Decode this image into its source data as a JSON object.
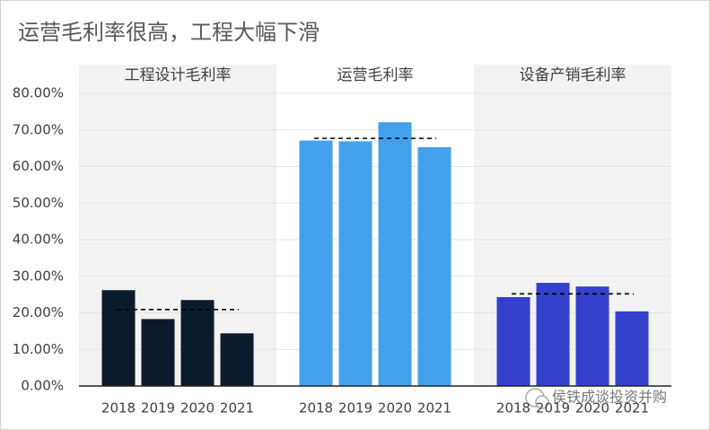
{
  "chart_data": {
    "type": "bar",
    "title": "运营毛利率很高，工程大幅下滑",
    "ylim": [
      0,
      80
    ],
    "yticks": [
      {
        "value": 0,
        "label": "0.00%"
      },
      {
        "value": 10,
        "label": "10.00%"
      },
      {
        "value": 20,
        "label": "20.00%"
      },
      {
        "value": 30,
        "label": "30.00%"
      },
      {
        "value": 40,
        "label": "40.00%"
      },
      {
        "value": 50,
        "label": "50.00%"
      },
      {
        "value": 60,
        "label": "60.00%"
      },
      {
        "value": 70,
        "label": "70.00%"
      },
      {
        "value": 80,
        "label": "80.00%"
      }
    ],
    "grid": true,
    "panels": [
      {
        "title": "工程设计毛利率",
        "categories": [
          "2018",
          "2019",
          "2020",
          "2021"
        ],
        "values": [
          26.2,
          18.3,
          23.5,
          14.4
        ],
        "average": 20.9,
        "color": "#0c1b2b",
        "background": "#f2f2f2"
      },
      {
        "title": "运营毛利率",
        "categories": [
          "2018",
          "2019",
          "2020",
          "2021"
        ],
        "values": [
          67.1,
          66.9,
          72.1,
          65.3
        ],
        "average": 67.7,
        "color": "#42a1ea",
        "background": "#ffffff"
      },
      {
        "title": "设备产销毛利率",
        "categories": [
          "2018",
          "2019",
          "2020",
          "2021"
        ],
        "values": [
          24.3,
          28.2,
          27.2,
          20.4
        ],
        "average": 25.2,
        "color": "#3340cc",
        "background": "#f2f2f2"
      }
    ],
    "watermark": "侯铁成谈投资并购"
  }
}
